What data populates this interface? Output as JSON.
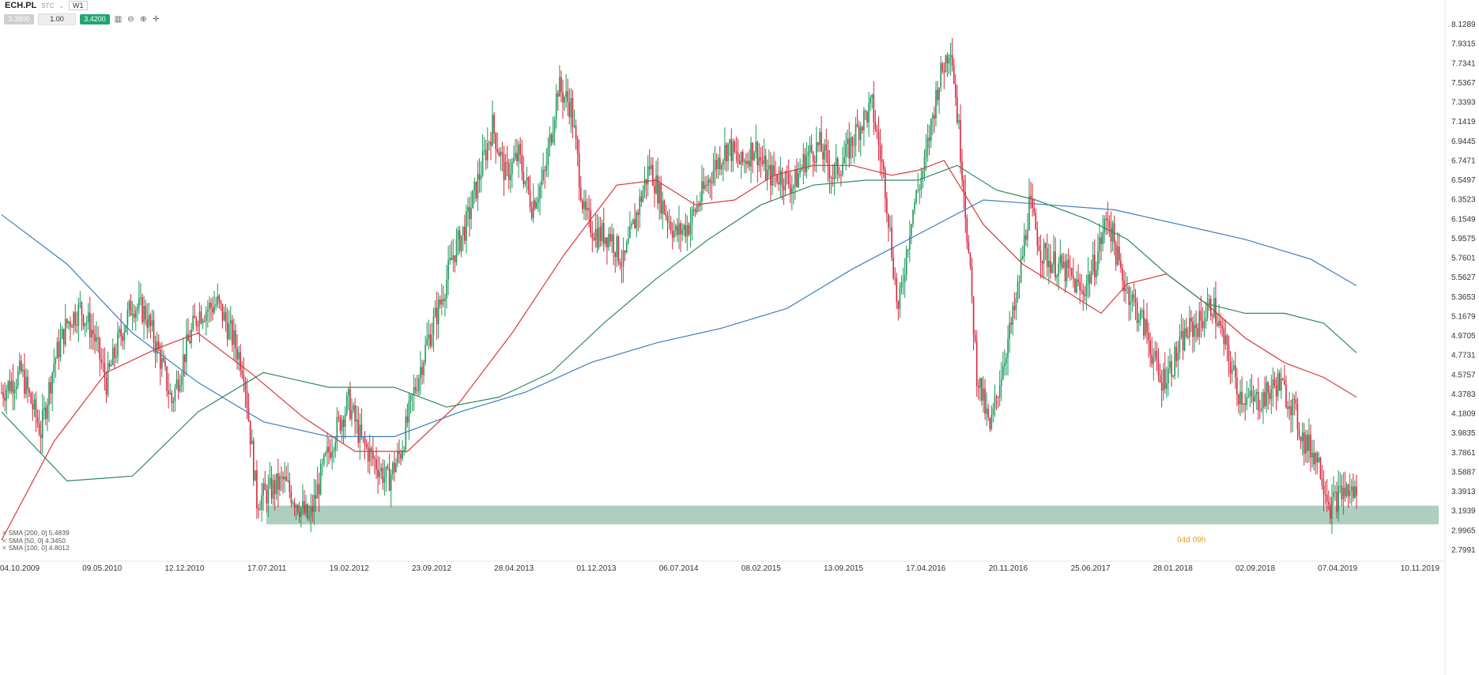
{
  "toolbar": {
    "symbol": "ECH.PL",
    "type": "STC",
    "timeframe": "W1",
    "bid": "3.3800",
    "volume": "1.00",
    "ask": "3.4200"
  },
  "legend": [
    {
      "label": "SMA [200, 0] 5.4839",
      "color": "#3a7fc1"
    },
    {
      "label": "SMA [50, 0] 4.3450",
      "color": "#d9393b"
    },
    {
      "label": "SMA [100, 0] 4.8012",
      "color": "#2e8a5a"
    }
  ],
  "countdown": "04d 09h",
  "chart_data": {
    "type": "line",
    "title": "ECH.PL W1",
    "price_range": [
      2.7991,
      8.1289
    ],
    "y_ticks": [
      "8.1289",
      "7.9315",
      "7.7341",
      "7.5367",
      "7.3393",
      "7.1419",
      "6.9445",
      "6.7471",
      "6.5497",
      "6.3523",
      "6.1549",
      "5.9575",
      "5.7601",
      "5.5627",
      "5.3653",
      "5.1679",
      "4.9705",
      "4.7731",
      "4.5757",
      "4.3783",
      "4.1809",
      "3.9835",
      "3.7861",
      "3.5887",
      "3.3913",
      "3.1939",
      "2.9965",
      "2.7991"
    ],
    "x_ticks": [
      "04.10.2009",
      "09.05.2010",
      "12.12.2010",
      "17.07.2011",
      "19.02.2012",
      "23.09.2012",
      "28.04.2013",
      "01.12.2013",
      "06.07.2014",
      "08.02.2015",
      "13.09.2015",
      "17.04.2016",
      "20.11.2016",
      "25.06.2017",
      "28.01.2018",
      "02.09.2018",
      "07.04.2019",
      "10.11.2019"
    ],
    "support_zone": [
      3.06,
      3.25
    ],
    "close_path": [
      [
        0,
        4.4
      ],
      [
        3,
        4.6
      ],
      [
        6,
        4.0
      ],
      [
        8,
        4.7
      ],
      [
        10,
        5.1
      ],
      [
        12,
        5.25
      ],
      [
        14,
        5.0
      ],
      [
        16,
        4.5
      ],
      [
        18,
        4.95
      ],
      [
        20,
        5.3
      ],
      [
        22,
        5.2
      ],
      [
        24,
        4.8
      ],
      [
        26,
        4.3
      ],
      [
        28,
        4.8
      ],
      [
        30,
        5.2
      ],
      [
        33,
        5.3
      ],
      [
        35,
        5.0
      ],
      [
        37,
        4.65
      ],
      [
        39,
        3.3
      ],
      [
        41,
        3.4
      ],
      [
        43,
        3.5
      ],
      [
        45,
        3.3
      ],
      [
        47,
        3.1
      ],
      [
        49,
        3.6
      ],
      [
        51,
        4.0
      ],
      [
        53,
        4.3
      ],
      [
        55,
        3.9
      ],
      [
        57,
        3.7
      ],
      [
        59,
        3.5
      ],
      [
        61,
        3.8
      ],
      [
        63,
        4.4
      ],
      [
        65,
        4.9
      ],
      [
        67,
        5.3
      ],
      [
        69,
        5.8
      ],
      [
        71,
        6.1
      ],
      [
        73,
        6.6
      ],
      [
        75,
        7.1
      ],
      [
        77,
        6.6
      ],
      [
        79,
        6.8
      ],
      [
        81,
        6.3
      ],
      [
        83,
        6.6
      ],
      [
        85,
        7.5
      ],
      [
        87,
        7.3
      ],
      [
        89,
        6.2
      ],
      [
        91,
        6.0
      ],
      [
        93,
        6.0
      ],
      [
        95,
        5.7
      ],
      [
        97,
        6.2
      ],
      [
        99,
        6.7
      ],
      [
        101,
        6.3
      ],
      [
        103,
        6.0
      ],
      [
        105,
        6.1
      ],
      [
        107,
        6.4
      ],
      [
        109,
        6.7
      ],
      [
        111,
        6.9
      ],
      [
        113,
        6.7
      ],
      [
        115,
        6.9
      ],
      [
        117,
        6.6
      ],
      [
        119,
        6.6
      ],
      [
        121,
        6.5
      ],
      [
        123,
        6.8
      ],
      [
        125,
        6.9
      ],
      [
        127,
        6.6
      ],
      [
        129,
        6.8
      ],
      [
        131,
        7.1
      ],
      [
        133,
        7.3
      ],
      [
        135,
        6.5
      ],
      [
        137,
        5.2
      ],
      [
        139,
        6.2
      ],
      [
        141,
        6.7
      ],
      [
        143,
        7.5
      ],
      [
        145,
        7.95
      ],
      [
        147,
        6.5
      ],
      [
        149,
        4.6
      ],
      [
        151,
        4.0
      ],
      [
        153,
        4.7
      ],
      [
        155,
        5.3
      ],
      [
        157,
        6.3
      ],
      [
        159,
        5.8
      ],
      [
        161,
        5.7
      ],
      [
        163,
        5.6
      ],
      [
        165,
        5.4
      ],
      [
        167,
        5.7
      ],
      [
        169,
        6.2
      ],
      [
        171,
        5.6
      ],
      [
        173,
        5.3
      ],
      [
        175,
        5.0
      ],
      [
        177,
        4.5
      ],
      [
        179,
        4.7
      ],
      [
        181,
        5.0
      ],
      [
        183,
        5.1
      ],
      [
        185,
        5.3
      ],
      [
        187,
        4.85
      ],
      [
        189,
        4.4
      ],
      [
        191,
        4.3
      ],
      [
        193,
        4.35
      ],
      [
        195,
        4.5
      ],
      [
        197,
        4.3
      ],
      [
        199,
        3.9
      ],
      [
        201,
        3.75
      ],
      [
        203,
        3.25
      ],
      [
        205,
        3.4
      ],
      [
        207,
        3.38
      ]
    ],
    "series": [
      {
        "name": "SMA [200, 0]",
        "color": "#3a7fc1",
        "points": [
          [
            0,
            6.2
          ],
          [
            10,
            5.7
          ],
          [
            20,
            5.0
          ],
          [
            30,
            4.5
          ],
          [
            40,
            4.1
          ],
          [
            50,
            3.95
          ],
          [
            60,
            3.95
          ],
          [
            70,
            4.2
          ],
          [
            80,
            4.4
          ],
          [
            90,
            4.7
          ],
          [
            100,
            4.9
          ],
          [
            110,
            5.05
          ],
          [
            120,
            5.25
          ],
          [
            130,
            5.65
          ],
          [
            140,
            6.0
          ],
          [
            150,
            6.35
          ],
          [
            160,
            6.3
          ],
          [
            170,
            6.25
          ],
          [
            180,
            6.1
          ],
          [
            190,
            5.95
          ],
          [
            200,
            5.75
          ],
          [
            207,
            5.48
          ]
        ]
      },
      {
        "name": "SMA [50, 0]",
        "color": "#d9393b",
        "points": [
          [
            0,
            2.9
          ],
          [
            8,
            3.9
          ],
          [
            16,
            4.6
          ],
          [
            24,
            4.85
          ],
          [
            30,
            5.0
          ],
          [
            38,
            4.6
          ],
          [
            46,
            4.15
          ],
          [
            54,
            3.8
          ],
          [
            62,
            3.8
          ],
          [
            70,
            4.3
          ],
          [
            78,
            5.0
          ],
          [
            86,
            5.8
          ],
          [
            94,
            6.5
          ],
          [
            100,
            6.55
          ],
          [
            106,
            6.3
          ],
          [
            112,
            6.35
          ],
          [
            118,
            6.6
          ],
          [
            124,
            6.7
          ],
          [
            130,
            6.7
          ],
          [
            136,
            6.6
          ],
          [
            140,
            6.65
          ],
          [
            144,
            6.75
          ],
          [
            150,
            6.1
          ],
          [
            156,
            5.7
          ],
          [
            162,
            5.45
          ],
          [
            168,
            5.2
          ],
          [
            172,
            5.5
          ],
          [
            178,
            5.6
          ],
          [
            184,
            5.3
          ],
          [
            190,
            4.95
          ],
          [
            196,
            4.7
          ],
          [
            202,
            4.55
          ],
          [
            207,
            4.35
          ]
        ]
      },
      {
        "name": "SMA [100, 0]",
        "color": "#2e8a5a",
        "points": [
          [
            0,
            4.2
          ],
          [
            10,
            3.5
          ],
          [
            20,
            3.55
          ],
          [
            30,
            4.2
          ],
          [
            40,
            4.6
          ],
          [
            50,
            4.45
          ],
          [
            60,
            4.45
          ],
          [
            68,
            4.25
          ],
          [
            76,
            4.35
          ],
          [
            84,
            4.6
          ],
          [
            92,
            5.1
          ],
          [
            100,
            5.55
          ],
          [
            108,
            5.95
          ],
          [
            116,
            6.3
          ],
          [
            124,
            6.5
          ],
          [
            132,
            6.55
          ],
          [
            140,
            6.55
          ],
          [
            146,
            6.7
          ],
          [
            152,
            6.45
          ],
          [
            158,
            6.35
          ],
          [
            166,
            6.15
          ],
          [
            172,
            5.95
          ],
          [
            178,
            5.6
          ],
          [
            184,
            5.3
          ],
          [
            190,
            5.2
          ],
          [
            196,
            5.2
          ],
          [
            202,
            5.1
          ],
          [
            207,
            4.8
          ]
        ]
      }
    ]
  }
}
